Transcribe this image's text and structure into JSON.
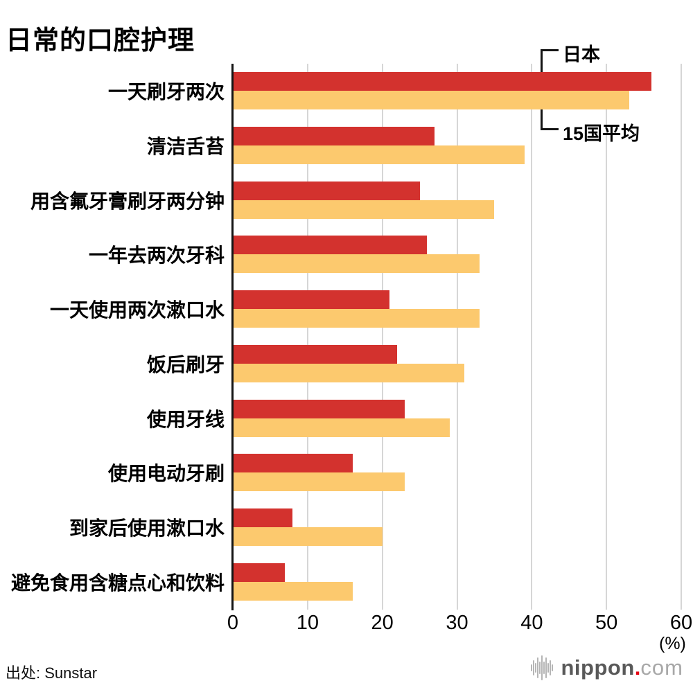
{
  "title": "日常的口腔护理",
  "source": "出处: Sunstar",
  "legend": {
    "series1": "日本",
    "series2": "15国平均"
  },
  "axis": {
    "unit_label": "(%)",
    "max": 60
  },
  "colors": {
    "japan_bar": "#d3322e",
    "average_bar": "#fcc96e",
    "gridline": "#d6d6d6",
    "axis_line": "#141414",
    "logo_dot": "#e60012"
  },
  "logo": {
    "name": "nippon",
    "dot": ".",
    "tld": "com"
  },
  "chart_data": {
    "type": "bar",
    "orientation": "horizontal",
    "title": "日常的口腔护理",
    "xlabel": "(%)",
    "xlim": [
      0,
      60
    ],
    "x_ticks": [
      0,
      10,
      20,
      30,
      40,
      50,
      60
    ],
    "grid": true,
    "legend_position": "top-right-bracket",
    "categories": [
      "一天刷牙两次",
      "清洁舌苔",
      "用含氟牙膏刷牙两分钟",
      "一年去两次牙科",
      "一天使用两次漱口水",
      "饭后刷牙",
      "使用牙线",
      "使用电动牙刷",
      "到家后使用漱口水",
      "避免食用含糖点心和饮料"
    ],
    "series": [
      {
        "name": "日本",
        "color": "#d3322e",
        "values": [
          56,
          27,
          25,
          26,
          21,
          22,
          23,
          16,
          8,
          7
        ]
      },
      {
        "name": "15国平均",
        "color": "#fcc96e",
        "values": [
          53,
          39,
          35,
          33,
          33,
          31,
          29,
          23,
          20,
          16
        ]
      }
    ]
  }
}
